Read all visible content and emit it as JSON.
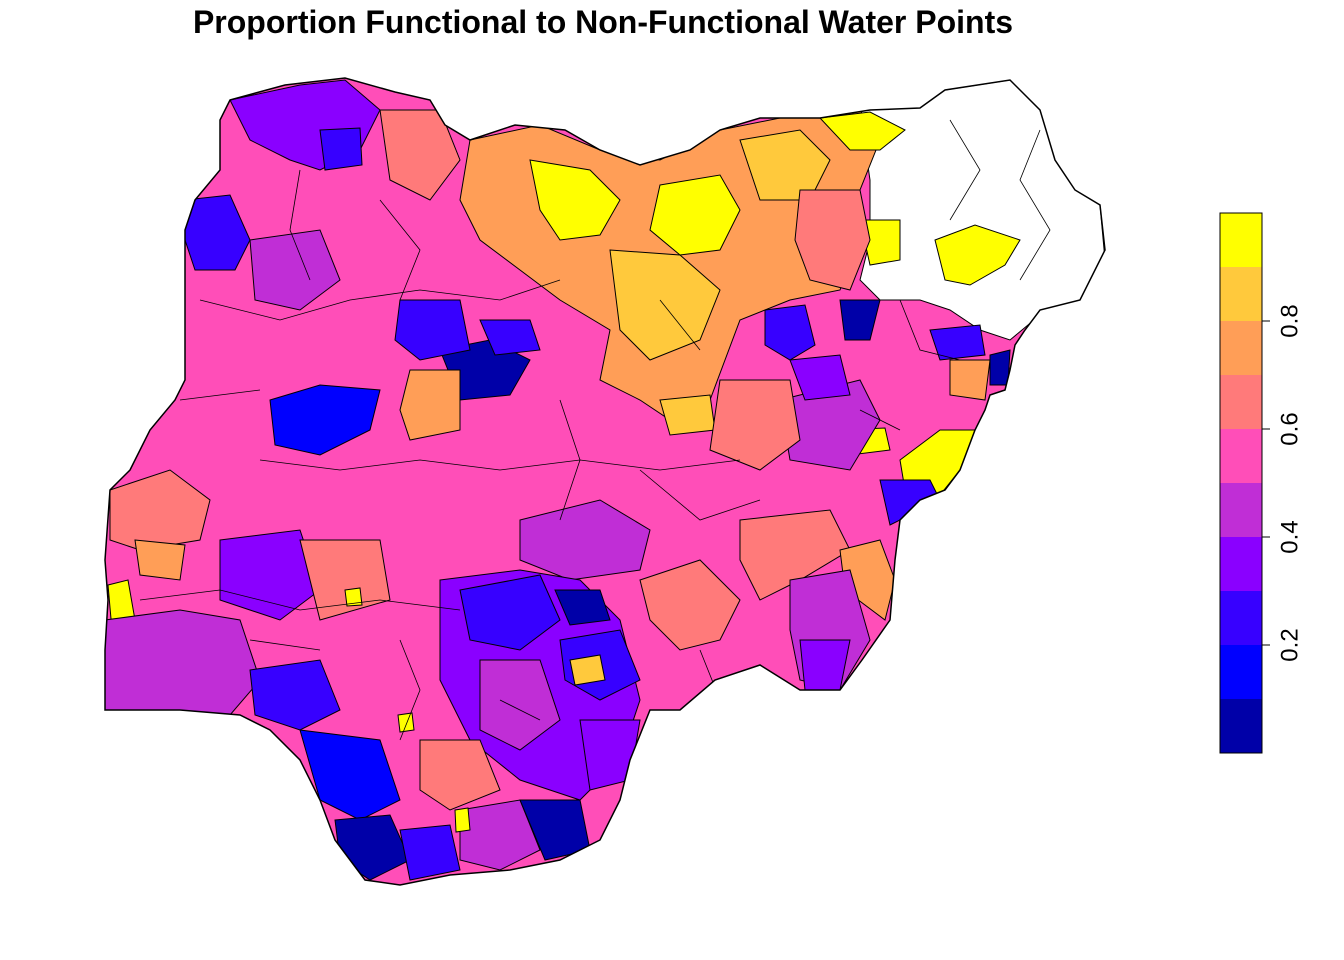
{
  "title": "Proportion Functional to Non-Functional Water Points",
  "palette": [
    "#0000A8",
    "#0000FF",
    "#3700FF",
    "#8A00FF",
    "#C02ED6",
    "#FF4EB8",
    "#FF7A7A",
    "#FF9E57",
    "#FFC93C",
    "#FFFF00"
  ],
  "no_data_color": "#FFFFFF",
  "legend": {
    "breaks": [
      0.0,
      0.1,
      0.2,
      0.3,
      0.4,
      0.5,
      0.6,
      0.7,
      0.8,
      0.9,
      1.0
    ],
    "tick_labels": [
      "0.2",
      "0.4",
      "0.6",
      "0.8"
    ],
    "tick_values": [
      0.2,
      0.4,
      0.6,
      0.8
    ],
    "range": [
      0.0,
      1.0
    ]
  }
}
